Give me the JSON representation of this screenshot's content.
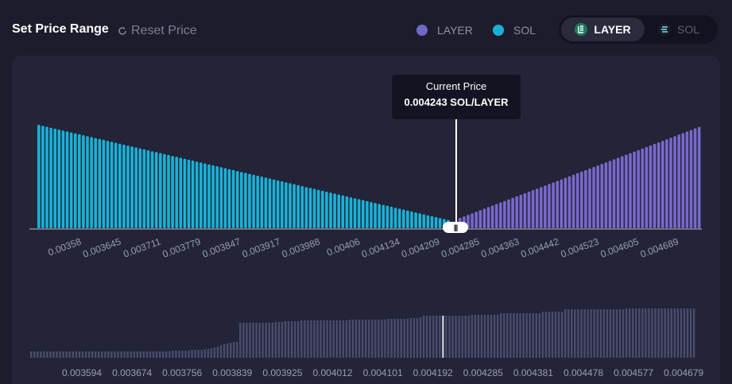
{
  "header": {
    "title": "Set Price Range",
    "reset_label": "Reset Price"
  },
  "legend": [
    {
      "label": "LAYER",
      "color": "#6f68c9"
    },
    {
      "label": "SOL",
      "color": "#19b2d6"
    }
  ],
  "token_toggle": {
    "active": {
      "label": "LAYER",
      "icon": "layer-token-icon"
    },
    "inactive": {
      "label": "SOL",
      "icon": "solana-token-icon"
    }
  },
  "current_price": {
    "label": "Current Price",
    "value": "0.004243 SOL/LAYER"
  },
  "colors": {
    "sol": "#19b2d6",
    "layer": "#7a68cc",
    "mini_bars": "#4b4c6e",
    "mini_marker": "#c8c9d8",
    "accent_dark": "#121221"
  },
  "chart_data": [
    {
      "type": "bar",
      "title": "",
      "description_series": [
        "SOL",
        "LAYER"
      ],
      "x_tick_labels": [
        "0.00358",
        "0.003645",
        "0.003711",
        "0.003779",
        "0.003847",
        "0.003917",
        "0.003988",
        "0.00406",
        "0.004134",
        "0.004209",
        "0.004285",
        "0.004363",
        "0.004442",
        "0.004523",
        "0.004605",
        "0.004689"
      ],
      "current_price": 0.004243,
      "sol_bars": {
        "count": 102,
        "start_height": 100,
        "end_height": 8
      },
      "layer_bars": {
        "count": 60,
        "start_height": 10,
        "end_height": 98
      },
      "ylim": [
        0,
        100
      ]
    },
    {
      "type": "bar",
      "title": "",
      "x_tick_labels": [
        "0.003594",
        "0.003674",
        "0.003756",
        "0.003839",
        "0.003925",
        "0.004012",
        "0.004101",
        "0.004192",
        "0.004285",
        "0.004381",
        "0.004478",
        "0.004577",
        "0.004679"
      ],
      "values": [
        8,
        8,
        8,
        8,
        8,
        8,
        8,
        8,
        8,
        8,
        8,
        8,
        8,
        8,
        8,
        8,
        8,
        8,
        8,
        8,
        8,
        8,
        8,
        8,
        8,
        8,
        8,
        8,
        8,
        8,
        8,
        8,
        8,
        8,
        8,
        8,
        8,
        8,
        8,
        8,
        8,
        8,
        8,
        8,
        9,
        9,
        9,
        9,
        9,
        9,
        10,
        10,
        10,
        10,
        11,
        11,
        12,
        13,
        14,
        16,
        17,
        18,
        19,
        20,
        20,
        44,
        44,
        44,
        44,
        44,
        44,
        44,
        44,
        44,
        44,
        44,
        45,
        45,
        45,
        46,
        46,
        46,
        46,
        46,
        47,
        47,
        47,
        47,
        47,
        47,
        47,
        47,
        47,
        47,
        47,
        47,
        47,
        47,
        47,
        48,
        48,
        48,
        48,
        48,
        48,
        48,
        48,
        48,
        48,
        48,
        48,
        49,
        49,
        49,
        49,
        49,
        49,
        49,
        50,
        50,
        50,
        51,
        53,
        53,
        53,
        53,
        53,
        53,
        53,
        53,
        53,
        53,
        53,
        53,
        53,
        53,
        53,
        54,
        54,
        54,
        54,
        54,
        54,
        54,
        54,
        54,
        56,
        56,
        56,
        56,
        56,
        56,
        56,
        56,
        56,
        56,
        56,
        56,
        56,
        58,
        58,
        58,
        58,
        58,
        58,
        58,
        61,
        61,
        61,
        61,
        61,
        61,
        61,
        61,
        61,
        61,
        61,
        61,
        61,
        61,
        61,
        61,
        61,
        61,
        61,
        62,
        62,
        62,
        62,
        62,
        62,
        62,
        62,
        62,
        62,
        62,
        62,
        62,
        62,
        62,
        62,
        62,
        62,
        62,
        62,
        62,
        62
      ],
      "marker_index": 128,
      "ylim": [
        0,
        70
      ]
    }
  ]
}
